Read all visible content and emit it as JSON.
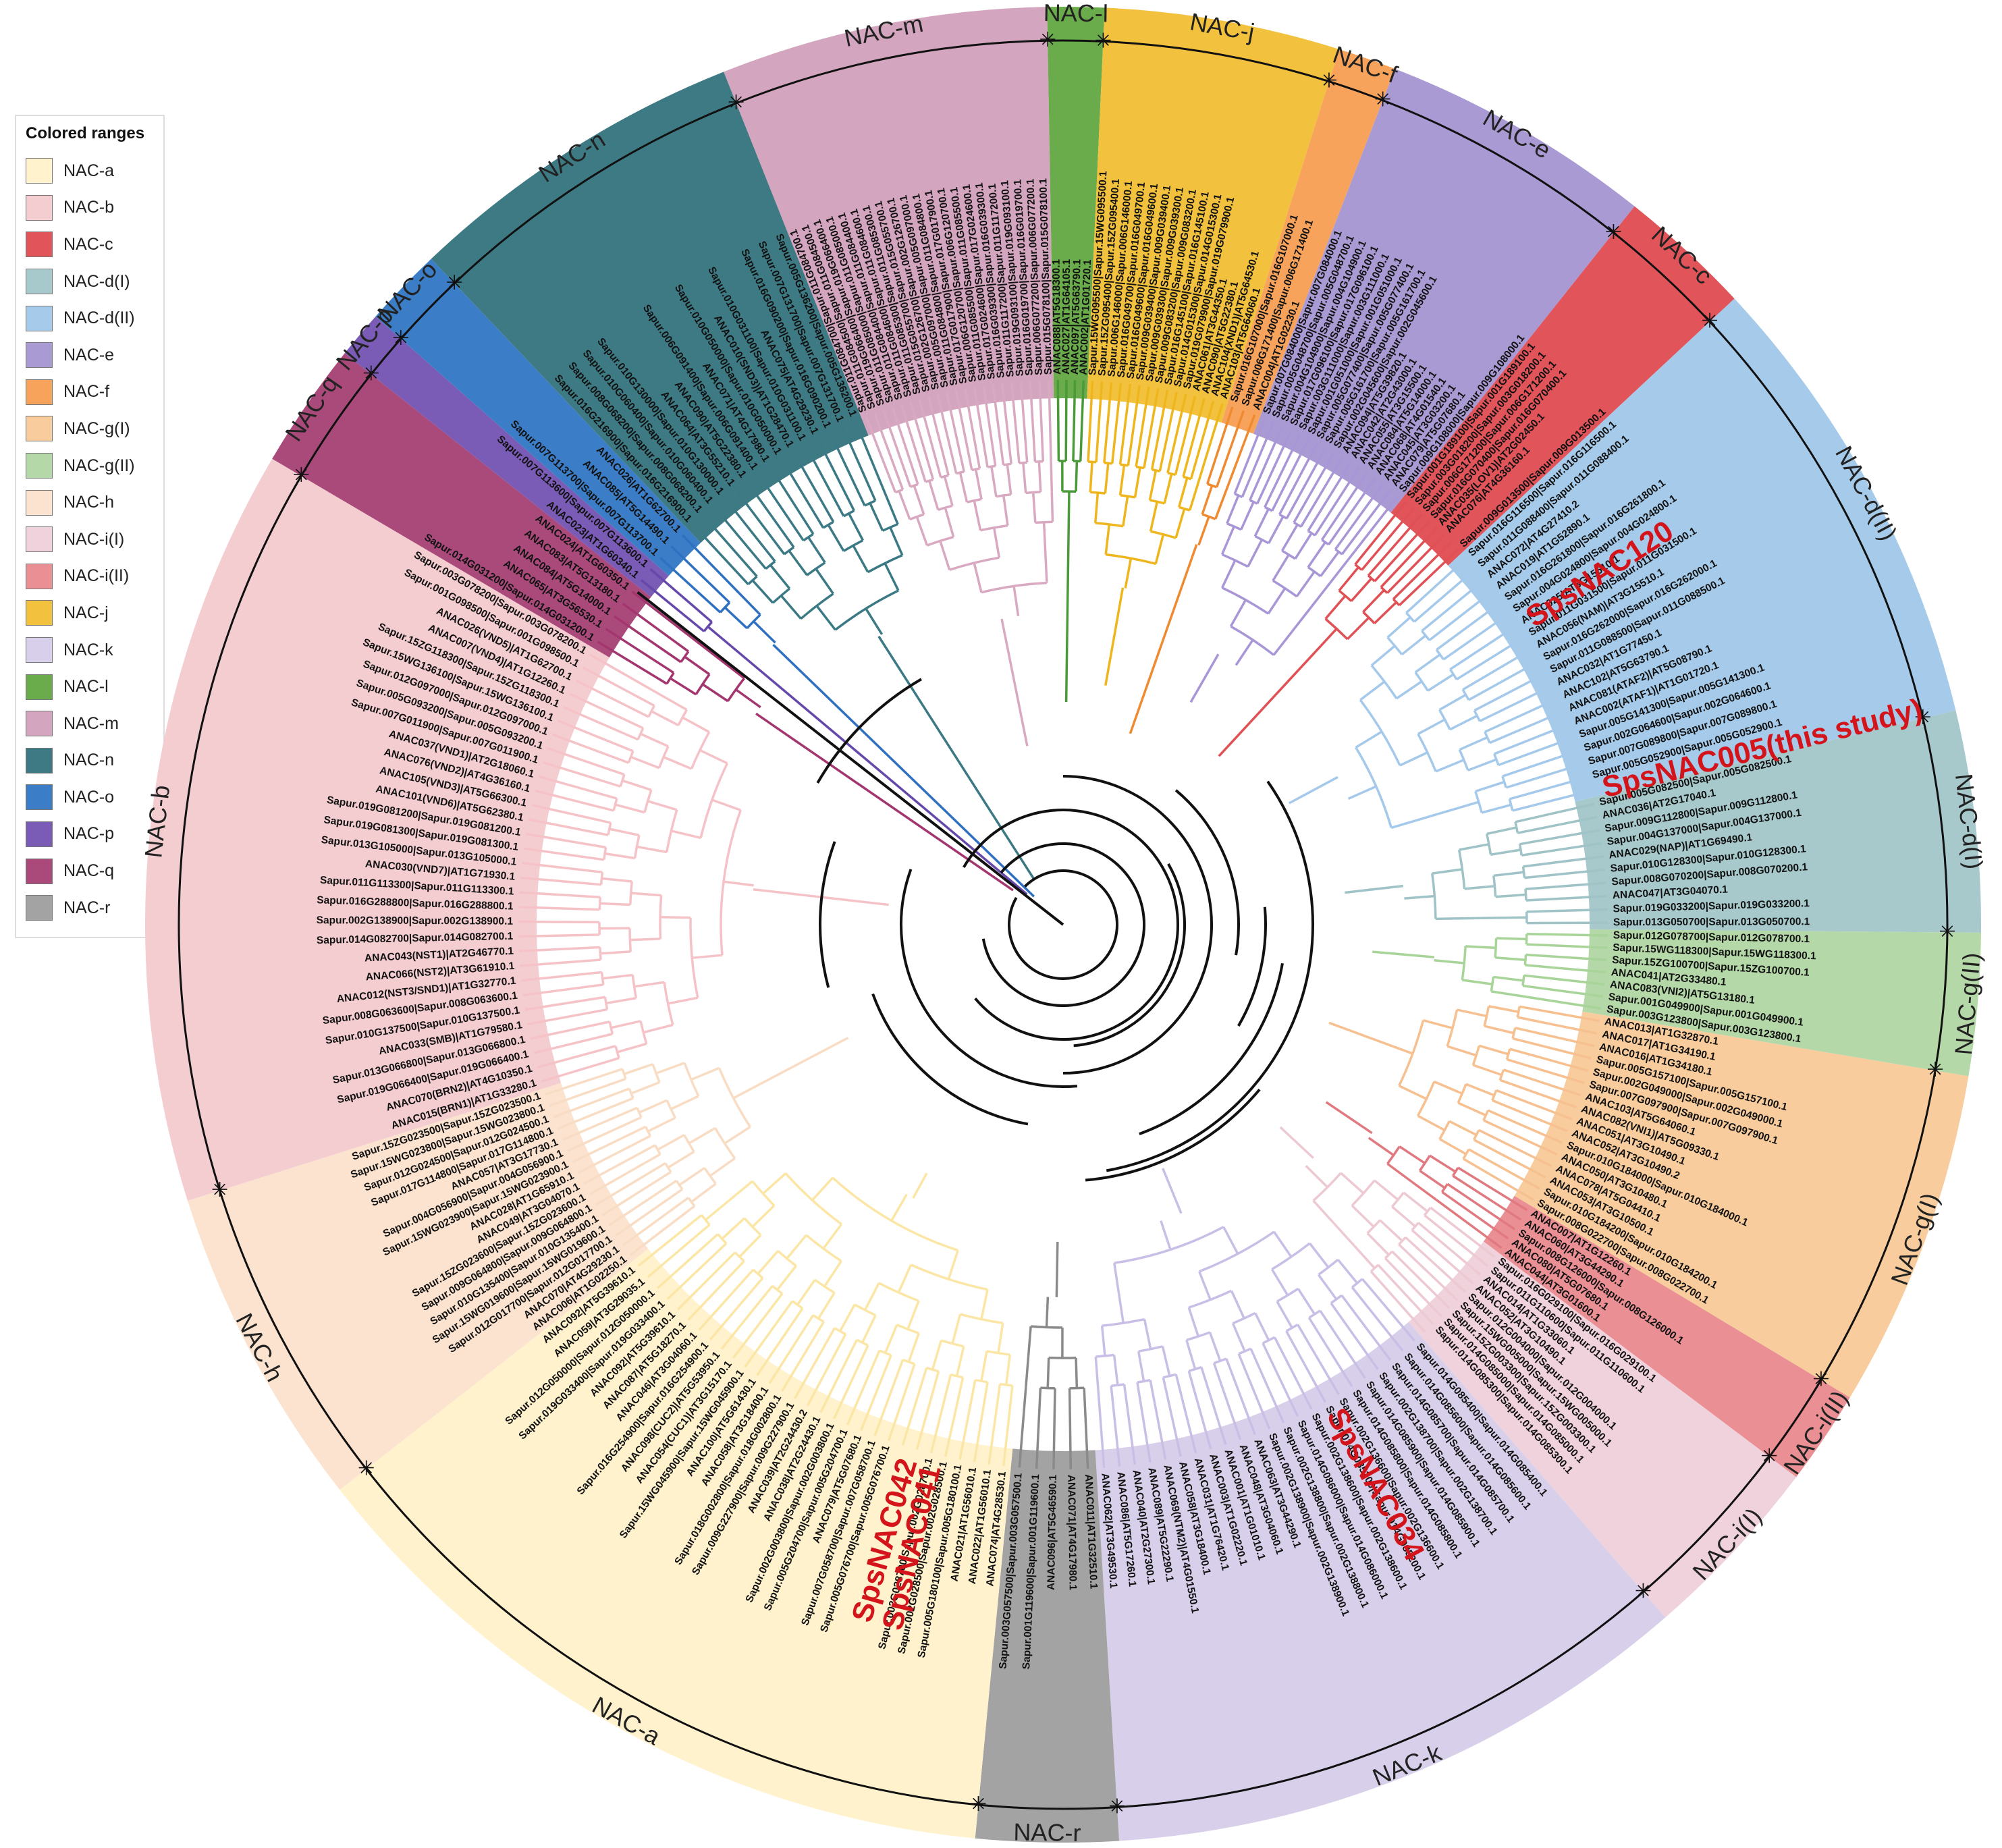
{
  "legend": {
    "title": "Colored ranges",
    "items": [
      {
        "label": "NAC-a",
        "color": "#fff2cc"
      },
      {
        "label": "NAC-b",
        "color": "#f4cdd0"
      },
      {
        "label": "NAC-c",
        "color": "#e0545a"
      },
      {
        "label": "NAC-d(I)",
        "color": "#a7c9cc"
      },
      {
        "label": "NAC-d(II)",
        "color": "#a6cbea"
      },
      {
        "label": "NAC-e",
        "color": "#a99ad4"
      },
      {
        "label": "NAC-f",
        "color": "#f7a35c"
      },
      {
        "label": "NAC-g(I)",
        "color": "#f8cc9c"
      },
      {
        "label": "NAC-g(II)",
        "color": "#b5d8a8"
      },
      {
        "label": "NAC-h",
        "color": "#fbe3cf"
      },
      {
        "label": "NAC-i(I)",
        "color": "#f0d2dc"
      },
      {
        "label": "NAC-i(II)",
        "color": "#ea8f94"
      },
      {
        "label": "NAC-j",
        "color": "#f2c23e"
      },
      {
        "label": "NAC-k",
        "color": "#d8d0ea"
      },
      {
        "label": "NAC-l",
        "color": "#6aab4b"
      },
      {
        "label": "NAC-m",
        "color": "#d4a5bf"
      },
      {
        "label": "NAC-n",
        "color": "#3e7a84"
      },
      {
        "label": "NAC-o",
        "color": "#3b7dc6"
      },
      {
        "label": "NAC-p",
        "color": "#7a5bb5"
      },
      {
        "label": "NAC-q",
        "color": "#a94a7b"
      },
      {
        "label": "NAC-r",
        "color": "#a3a3a3"
      }
    ]
  },
  "tree": {
    "clades": [
      {
        "name": "NAC-m",
        "start": -21.7,
        "end": -1.0,
        "color": "#d4a5bf",
        "branch": "#d8a9c0",
        "leaves": [
          "Sapur.011G084700|Sapur.011G084700.1",
          "Sapur.011G084500|Sapur.011G084500.1",
          "Sapur.019G066400|Sapur.019G066400.1",
          "Sapur.011G085000|Sapur.011G085000.1",
          "Sapur.011G084400|Sapur.011G084400.1",
          "Sapur.011G084600|Sapur.011G084600.1",
          "Sapur.011G085300|Sapur.011G085300.1",
          "Sapur.015G055700|Sapur.015G055700.1",
          "Sapur.002G126700|Sapur.002G126700.1",
          "Sapur.005G097000|Sapur.005G097000.1",
          "Sapur.011G084800|Sapur.011G084800.1",
          "Sapur.017G017900|Sapur.017G017900.1",
          "Sapur.006G120700|Sapur.006G120700.1",
          "Sapur.011G085500|Sapur.011G085500.1",
          "Sapur.017G024600|Sapur.017G024600.1",
          "Sapur.016G039300|Sapur.016G039300.1",
          "Sapur.011G117200|Sapur.011G117200.1",
          "Sapur.019G093100|Sapur.019G093100.1",
          "Sapur.016G019700|Sapur.016G019700.1",
          "Sapur.006G077200|Sapur.006G077200.1",
          "Sapur.015G078100|Sapur.015G078100.1"
        ]
      },
      {
        "name": "NAC-l",
        "start": -1.0,
        "end": 2.6,
        "color": "#6aab4b",
        "branch": "#4b9a3a",
        "leaves": [
          "ANAC088|AT5G18300.1",
          "ANAC027|AT1G64105.1",
          "ANAC097|AT5G63790.1",
          "ANAC002|AT1G01720.1"
        ]
      },
      {
        "name": "NAC-j",
        "start": 2.6,
        "end": 17.5,
        "color": "#f2c23e",
        "branch": "#efb51c",
        "leaves": [
          "Sapur.15WG095500|Sapur.15WG095500.1",
          "Sapur.15ZG095400|Sapur.15ZG095400.1",
          "Sapur.006G146000|Sapur.006G146000.1",
          "Sapur.016G049700|Sapur.016G049700.1",
          "Sapur.016G049600|Sapur.016G049600.1",
          "Sapur.009G039400|Sapur.009G039400.1",
          "Sapur.009G039300|Sapur.009G039300.1",
          "Sapur.009G083200|Sapur.009G083200.1",
          "Sapur.016G145100|Sapur.016G145100.1",
          "Sapur.014G015300|Sapur.014G015300.1",
          "Sapur.019G079900|Sapur.019G079900.1",
          "ANAC061|AT3G44350.1",
          "ANAC090|AT5G22380.1",
          "ANAC104(XND1)|AT5G64530.1",
          "ANAC103|AT5G64060.1"
        ]
      },
      {
        "name": "NAC-f",
        "start": 17.5,
        "end": 21.2,
        "color": "#f7a35c",
        "branch": "#f08a30",
        "leaves": [
          "Sapur.016G107000|Sapur.016G107000.1",
          "Sapur.006G171400|Sapur.006G171400.1",
          "ANAC004|AT1G02230.1"
        ]
      },
      {
        "name": "NAC-e",
        "start": 21.2,
        "end": 38.5,
        "color": "#a99ad4",
        "branch": "#a896d6",
        "leaves": [
          "Sapur.007G084000|Sapur.007G084000.1",
          "Sapur.005G048700|Sapur.005G048700.1",
          "Sapur.004G104900|Sapur.004G104900.1",
          "Sapur.017G096100|Sapur.017G096100.1",
          "Sapur.003G111000|Sapur.003G111000.1",
          "Sapur.001G051000|Sapur.001G051000.1",
          "Sapur.005G077400|Sapur.005G077400.1",
          "Sapur.005G161700|Sapur.005G161700.1",
          "Sapur.002G045600|Sapur.002G045600.1",
          "ANAC094|AT5G39820.1",
          "ANAC042|AT2G43000.1",
          "ANAC055|AT3G15500.1",
          "ANAC084|AT5G14000.1",
          "ANAC068|AT4G01540.1",
          "ANAC045|AT3G03200.1",
          "ANAC079|AT5G07680.1",
          "Sapur.009G108000|Sapur.009G108000.1"
        ]
      },
      {
        "name": "NAC-c",
        "start": 38.5,
        "end": 47.0,
        "color": "#e0545a",
        "branch": "#e05055",
        "leaves": [
          "Sapur.001G189100|Sapur.001G189100.1",
          "Sapur.003G018200|Sapur.003G018200.1",
          "Sapur.006G171200|Sapur.006G171200.1",
          "Sapur.016G070400|Sapur.016G070400.1",
          "ANAC035(LOV1)|AT2G02450.1",
          "ANAC076|AT4G36160.1",
          "SpsNAC120",
          "Sapur.009G013500|Sapur.009G013500.1"
        ]
      },
      {
        "name": "NAC-d(II)",
        "start": 47.0,
        "end": 76.5,
        "color": "#a6cbea",
        "branch": "#a5c9ea",
        "leaves": [
          "Sapur.016G116500|Sapur.016G116500.1",
          "Sapur.011G088400|Sapur.011G088400.1",
          "ANAC072|AT4G27410.2",
          "ANAC019|AT1G52890.1",
          "Sapur.016G261800|Sapur.016G261800.1",
          "Sapur.004G024800|Sapur.004G024800.1",
          "ANAC025|AT3G15510.1",
          "Sapur.011G031500|Sapur.011G031500.1",
          "ANAC056(NAM)|AT3G15510.1",
          "Sapur.016G262000|Sapur.016G262000.1",
          "Sapur.011G088500|Sapur.011G088500.1",
          "ANAC032|AT1G77450.1",
          "ANAC102|AT5G63790.1",
          "ANAC081(ATAF2)|AT5G08790.1",
          "ANAC002(ATAF1)|AT1G01720.1",
          "Sapur.005G141300|Sapur.005G141300.1",
          "Sapur.002G064600|Sapur.002G064600.1",
          "Sapur.007G089800|Sapur.007G089800.1",
          "Sapur.005G052900|Sapur.005G052900.1",
          "SpsNAC005(this study)"
        ]
      },
      {
        "name": "NAC-d(I)",
        "start": 76.5,
        "end": 90.5,
        "color": "#a7c9cc",
        "branch": "#9fc3c6",
        "leaves": [
          "Sapur.005G082500|Sapur.005G082500.1",
          "ANAC036|AT2G17040.1",
          "Sapur.009G112800|Sapur.009G112800.1",
          "Sapur.004G137000|Sapur.004G137000.1",
          "ANAC029(NAP)|AT1G69490.1",
          "Sapur.010G128300|Sapur.010G128300.1",
          "Sapur.008G070200|Sapur.008G070200.1",
          "ANAC047|AT3G04070.1",
          "Sapur.019G033200|Sapur.019G033200.1",
          "Sapur.013G050700|Sapur.013G050700.1"
        ]
      },
      {
        "name": "NAC-g(II)",
        "start": 90.5,
        "end": 99.5,
        "color": "#b5d8a8",
        "branch": "#a8d49a",
        "leaves": [
          "Sapur.012G078700|Sapur.012G078700.1",
          "Sapur.15WG118300|Sapur.15WG118300.1",
          "Sapur.15ZG100700|Sapur.15ZG100700.1",
          "ANAC041|AT2G33480.1",
          "ANAC083(VNI2)|AT5G13180.1",
          "Sapur.001G049900|Sapur.001G049900.1",
          "Sapur.003G123800|Sapur.003G123800.1"
        ]
      },
      {
        "name": "NAC-g(I)",
        "start": 99.5,
        "end": 121.0,
        "color": "#f8cc9c",
        "branch": "#f6c090",
        "leaves": [
          "ANAC013|AT1G32870.1",
          "ANAC017|AT1G34190.1",
          "ANAC016|AT1G34180.1",
          "Sapur.005G157100|Sapur.005G157100.1",
          "Sapur.002G049000|Sapur.002G049000.1",
          "Sapur.007G097900|Sapur.007G097900.1",
          "ANAC103|AT5G64060.1",
          "ANAC082(VNI1)|AT5G09330.1",
          "ANAC051|AT3G10490.1",
          "ANAC052|AT3G10490.2",
          "Sapur.010G184000|Sapur.010G184000.1",
          "ANAC050|AT3G10480.1",
          "ANAC078|AT5G04410.1",
          "ANAC053|AT3G10500.1",
          "Sapur.010G184200|Sapur.010G184200.1",
          "Sapur.008G022700|Sapur.008G022700.1"
        ]
      },
      {
        "name": "NAC-i(II)",
        "start": 121.0,
        "end": 127.0,
        "color": "#ea8f94",
        "branch": "#e07a80",
        "leaves": [
          "ANAC007|AT1G12260.1",
          "ANAC060|AT3G44290.1",
          "Sapur.008G126000|Sapur.008G126000.1",
          "ANAC080|AT5G07680.1",
          "ANAC044|AT3G01600.1"
        ]
      },
      {
        "name": "NAC-i(I)",
        "start": 127.0,
        "end": 139.0,
        "color": "#f0d2dc",
        "branch": "#edc9d2",
        "leaves": [
          "Sapur.016G029100|Sapur.016G029100.1",
          "Sapur.011G110600|Sapur.011G110600.1",
          "ANAC014|AT1G33060.1",
          "ANAC052|AT3G10490.1",
          "Sapur.012G004000|Sapur.012G004000.1",
          "Sapur.15WG005000|Sapur.15WG005000.1",
          "Sapur.15ZG003300|Sapur.15ZG003300.1",
          "Sapur.014G085000|Sapur.014G085000.1",
          "Sapur.014G085300|Sapur.014G085300.1",
          "SpsNAC034"
        ]
      },
      {
        "name": "NAC-k",
        "start": 139.0,
        "end": 176.5,
        "color": "#d8d0ea",
        "branch": "#c9bfe6",
        "leaves": [
          "Sapur.014G085400|Sapur.014G085400.1",
          "Sapur.014G085600|Sapur.014G085600.1",
          "Sapur.014G085700|Sapur.014G085700.1",
          "Sapur.002G138700|Sapur.002G138700.1",
          "Sapur.014G085900|Sapur.014G085900.1",
          "Sapur.014G085800|Sapur.014G085800.1",
          "Sapur.002G136600|Sapur.002G136600.1",
          "Sapur.014G085200|Sapur.014G085200.1",
          "Sapur.002G138600|Sapur.002G138600.1",
          "Sapur.014G086000|Sapur.014G086000.1",
          "Sapur.002G138800|Sapur.002G138800.1",
          "Sapur.002G138900|Sapur.002G138900.1",
          "ANAC063|AT3G44290.1",
          "ANAC048|AT3G04060.1",
          "ANAC001|AT1G01010.1",
          "ANAC003|AT1G02220.1",
          "ANAC031|AT1G76420.1",
          "ANAC058|AT3G18400.1",
          "ANAC069(NTM2)|AT4G01550.1",
          "ANAC089|AT5G22290.1",
          "ANAC040|AT2G27300.1",
          "ANAC086|AT5G17260.1",
          "ANAC062|AT3G49530.1"
        ]
      },
      {
        "name": "NAC-r",
        "start": 176.5,
        "end": 185.5,
        "color": "#a3a3a3",
        "branch": "#8a8a8a",
        "leaves": [
          "ANAC011|AT1G32510.1",
          "ANAC071|AT4G17980.1",
          "ANAC096|AT5G46590.1",
          "Sapur.001G119600|Sapur.001G119600.1",
          "Sapur.003G057500|Sapur.003G057500.1"
        ]
      },
      {
        "name": "NAC-a",
        "start": 185.5,
        "end": 232.0,
        "color": "#fff2cc",
        "branch": "#fbe6a6",
        "leaves": [
          "ANAC074|AT4G28530.1",
          "ANAC022|AT1G56010.1",
          "ANAC021|AT1G56010.1",
          "Sapur.005G180100|Sapur.005G180100.1",
          "Sapur.002G028500|Sapur.002G028500.1",
          "Sapur.002G028700|Sapur.002G028700.1",
          "SpsNAC041",
          "SpsNAC042",
          "Sapur.005G076700|Sapur.005G076700.1",
          "Sapur.007G058700|Sapur.007G058700.1",
          "ANAC079|AT5G07680.1",
          "Sapur.005G204700|Sapur.005G204700.1",
          "Sapur.002G003800|Sapur.002G003800.1",
          "ANAC038|AT2G24430.1",
          "ANAC039|AT2G24430.2",
          "Sapur.009G227900|Sapur.009G227900.1",
          "Sapur.018G002800|Sapur.018G002800.1",
          "ANAC058|AT3G18400.1",
          "ANAC100|AT5G61430.1",
          "Sapur.15WG045900|Sapur.15WG045900.1",
          "ANAC054(CUC1)|AT3G15170.1",
          "ANAC098(CUC2)|AT5G53950.1",
          "Sapur.016G254900|Sapur.016G254900.1",
          "ANAC046|AT3G04060.1",
          "ANAC087|AT5G18270.1",
          "ANAC092|AT5G39610.1",
          "Sapur.019G033400|Sapur.019G033400.1",
          "Sapur.012G050000|Sapur.012G050000.1",
          "ANAC059|AT3G29035.1",
          "ANAC092|AT5G39610.1"
        ]
      },
      {
        "name": "NAC-h",
        "start": 232.0,
        "end": 252.5,
        "color": "#fbe3cf",
        "branch": "#f9dcc4",
        "leaves": [
          "ANAC006|AT1G02250.1",
          "ANAC070|AT4G29230.1",
          "Sapur.012G017700|Sapur.012G017700.1",
          "Sapur.15WG019600|Sapur.15WG019600.1",
          "Sapur.010G135400|Sapur.010G135400.1",
          "Sapur.009G064800|Sapur.009G064800.1",
          "Sapur.15ZG023600|Sapur.15ZG023600.1",
          "ANAC049|AT3G04070.1",
          "ANAC028|AT1G65910.1",
          "Sapur.15WG023900|Sapur.15WG023900.1",
          "Sapur.004G056900|Sapur.004G056900.1",
          "ANAC057|AT3G17730.1",
          "Sapur.017G114800|Sapur.017G114800.1",
          "Sapur.012G024500|Sapur.012G024500.1",
          "Sapur.15WG023800|Sapur.15WG023800.1",
          "Sapur.15ZG023500|Sapur.15ZG023500.1"
        ]
      },
      {
        "name": "NAC-b",
        "start": 252.5,
        "end": 300.5,
        "color": "#f4cdd0",
        "branch": "#f5c3c7",
        "leaves": [
          "ANAC015(BRN1)|AT1G33280.1",
          "ANAC070(BRN2)|AT4G10350.1",
          "Sapur.019G066400|Sapur.019G066400.1",
          "Sapur.013G066800|Sapur.013G066800.1",
          "ANAC033(SMB)|AT1G79580.1",
          "Sapur.010G137500|Sapur.010G137500.1",
          "Sapur.008G063600|Sapur.008G063600.1",
          "ANAC012(NST3/SND1)|AT1G32770.1",
          "ANAC066(NST2)|AT3G61910.1",
          "ANAC043(NST1)|AT2G46770.1",
          "Sapur.014G082700|Sapur.014G082700.1",
          "Sapur.002G138900|Sapur.002G138900.1",
          "Sapur.016G288800|Sapur.016G288800.1",
          "Sapur.011G113300|Sapur.011G113300.1",
          "ANAC030(VND7)|AT1G71930.1",
          "Sapur.013G105000|Sapur.013G105000.1",
          "Sapur.019G081300|Sapur.019G081300.1",
          "Sapur.019G081200|Sapur.019G081200.1",
          "ANAC101(VND6)|AT5G62380.1",
          "ANAC105(VND3)|AT5G66300.1",
          "ANAC076(VND2)|AT4G36160.1",
          "ANAC037(VND1)|AT2G18060.1",
          "Sapur.007G011900|Sapur.007G011900.1",
          "Sapur.005G093200|Sapur.005G093200.1",
          "Sapur.012G097000|Sapur.012G097000.1",
          "Sapur.15WG136100|Sapur.15WG136100.1",
          "Sapur.15ZG118300|Sapur.15ZG118300.1",
          "ANAC007(VND4)|AT1G12260.1",
          "ANAC026(VND5)|AT1G62700.1",
          "Sapur.001G098500|Sapur.001G098500.1",
          "Sapur.003G078200|Sapur.003G078200.1"
        ]
      },
      {
        "name": "NAC-q",
        "start": 300.5,
        "end": 308.5,
        "color": "#a94a7b",
        "branch": "#a3356f",
        "leaves": [
          "Sapur.014G031200|Sapur.014G031200.1",
          "ANAC065|AT3G56530.1",
          "ANAC084|AT5G14000.1",
          "ANAC083|AT5G13180.1",
          "ANAC024|AT1G60350.1"
        ]
      },
      {
        "name": "NAC-p",
        "start": 308.5,
        "end": 311.5,
        "color": "#7a5bb5",
        "branch": "#6548aa",
        "leaves": [
          "ANAC023|AT1G60340.1",
          "Sapur.007G113600|Sapur.007G113600.1"
        ]
      },
      {
        "name": "NAC-o",
        "start": 311.5,
        "end": 316.5,
        "color": "#3b7dc6",
        "branch": "#2f70c0",
        "leaves": [
          "Sapur.007G113700|Sapur.007G113700.1",
          "ANAC085|AT5G14490.1",
          "ANAC026|AT1G62700.1"
        ]
      },
      {
        "name": "NAC-n",
        "start": 316.5,
        "end": 338.3,
        "color": "#3e7a84",
        "branch": "#3b7a85",
        "leaves": [
          "Sapur.016G216900|Sapur.016G216900.1",
          "Sapur.008G068200|Sapur.008G068200.1",
          "Sapur.010G060400|Sapur.010G060400.1",
          "Sapur.010G130000|Sapur.010G130000.1",
          "ANAC064|AT3G55210.1",
          "ANAC090|AT5G22380.1",
          "Sapur.006G091400|Sapur.006G091400.1",
          "ANAC071|AT4G17980.1",
          "Sapur.010G050000|Sapur.010G050000.1",
          "ANAC010(SND3)|AT1G28470.1",
          "Sapur.010G031100|Sapur.010G031100.1",
          "ANAC075|AT4G29230.1",
          "Sapur.016G090200|Sapur.016G090200.1",
          "Sapur.007G131700|Sapur.007G131700.1",
          "Sapur.005G136200|Sapur.005G136200.1"
        ]
      }
    ],
    "clade_labels": {
      "NAC-m": "NAC-m",
      "NAC-l": "NAC-l",
      "NAC-j": "NAC-j",
      "NAC-f": "NAC-f",
      "NAC-e": "NAC-e",
      "NAC-c": "NAC-c",
      "NAC-d(II)": "NAC-d(II)",
      "NAC-d(I)": "NAC-d(I)",
      "NAC-g(II)": "NAC-g(II)",
      "NAC-g(I)": "NAC-g(I)",
      "NAC-i(II)": "NAC-i(II)",
      "NAC-i(I)": "NAC-i(I)",
      "NAC-k": "NAC-k",
      "NAC-r": "NAC-r",
      "NAC-a": "NAC-a",
      "NAC-h": "NAC-h",
      "NAC-b": "NAC-b",
      "NAC-q": "NAC-q",
      "NAC-p": "NAC-p",
      "NAC-o": "NAC-o",
      "NAC-n": "NAC-n"
    },
    "highlights": [
      {
        "text": "SpsNAC120",
        "angle": 57.0
      },
      {
        "text": "SpsNAC005(this study)",
        "angle": 76.0
      },
      {
        "text": "SpsNAC034",
        "angle": 151.0
      },
      {
        "text": "SpsNAC041",
        "angle": 193.5
      },
      {
        "text": "SpsNAC042",
        "angle": 196.0
      }
    ]
  }
}
